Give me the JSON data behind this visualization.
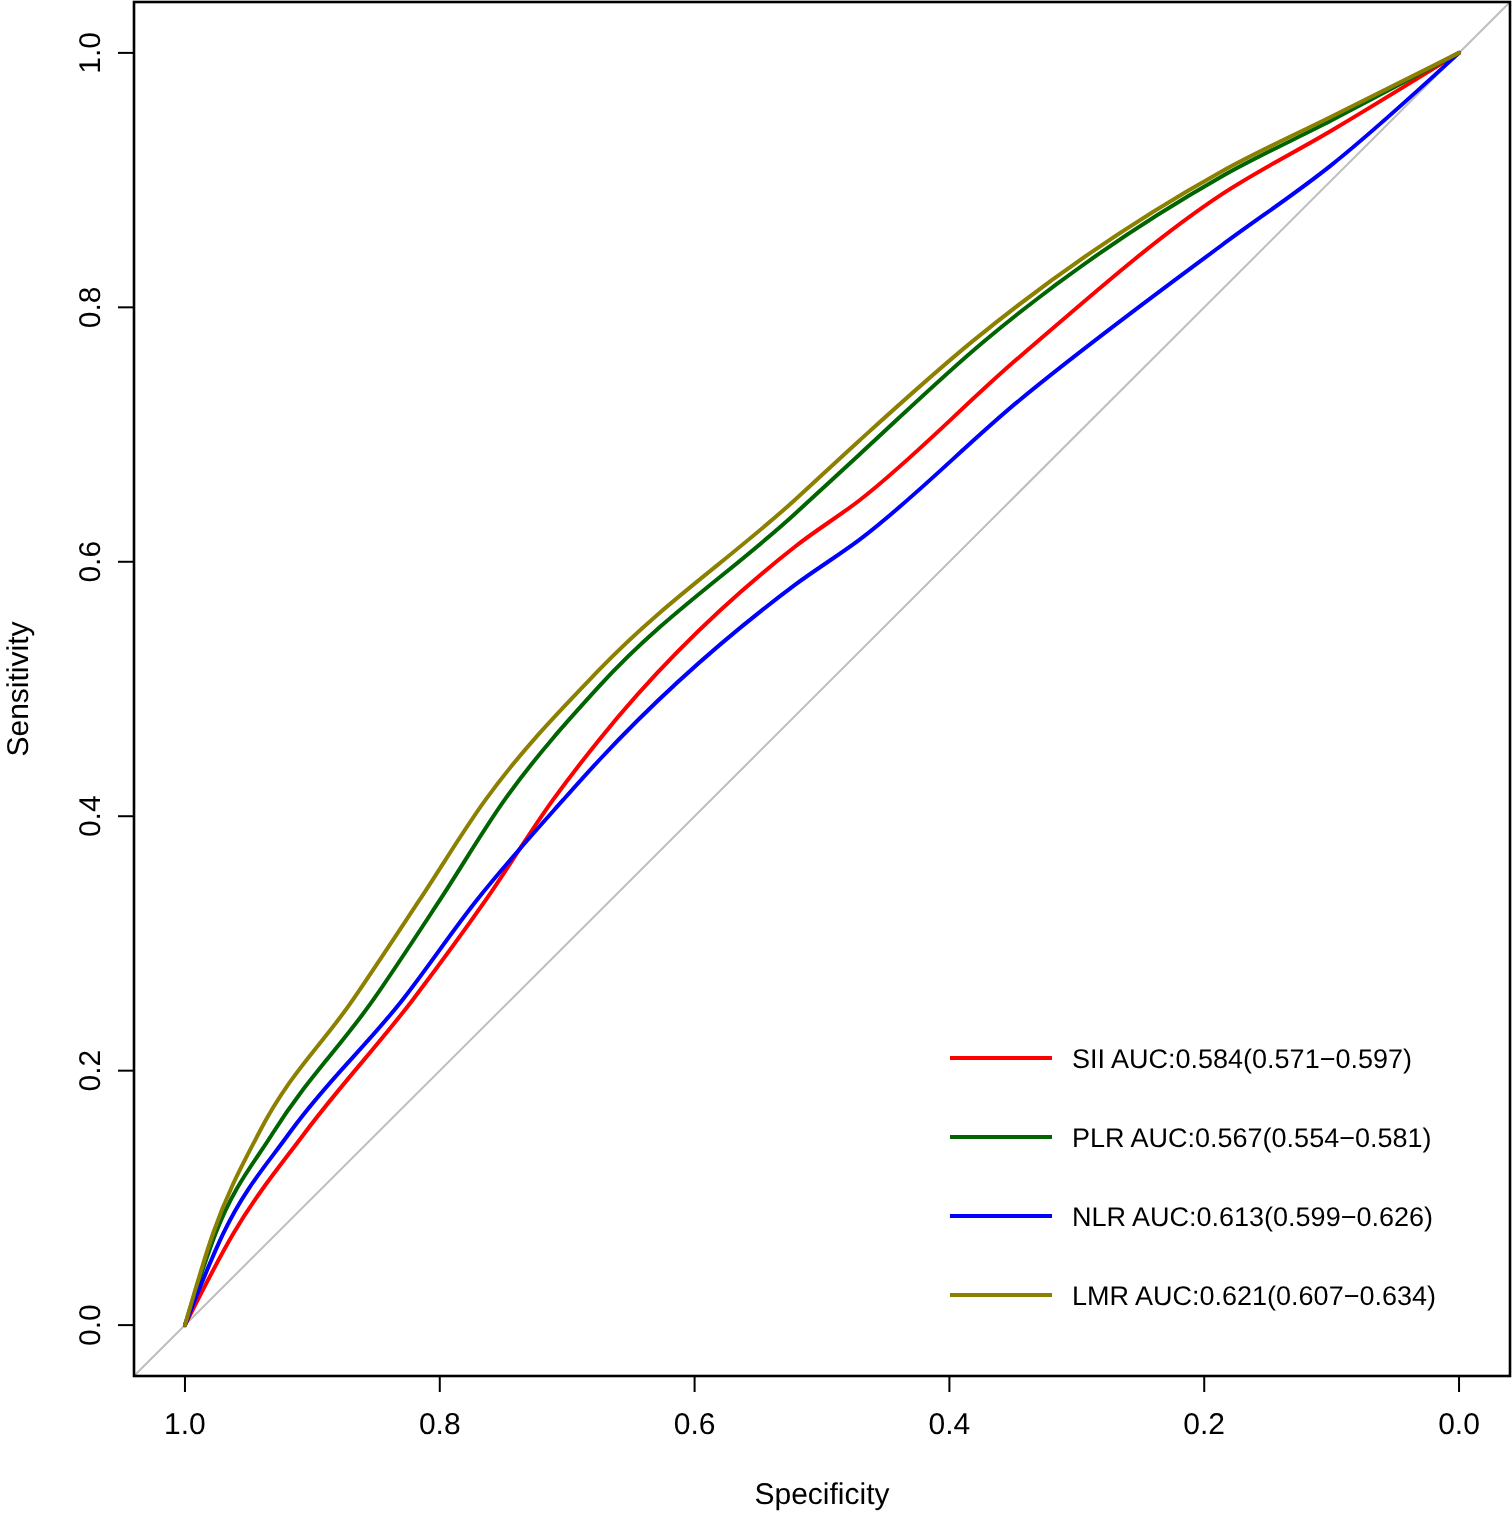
{
  "chart_data": {
    "type": "line",
    "xlabel": "Specificity",
    "ylabel": "Sensitivity",
    "xlim": [
      1.04,
      -0.04
    ],
    "ylim": [
      -0.04,
      1.04
    ],
    "xticks": [
      {
        "value": 1,
        "label": "1.0"
      },
      0.8,
      0.6,
      0.4,
      0.2,
      {
        "value": 0,
        "label": "0.0"
      }
    ],
    "yticks": [
      {
        "value": 0,
        "label": "0.0"
      },
      0.2,
      0.4,
      0.6,
      0.8,
      {
        "value": 1,
        "label": "1.0"
      }
    ],
    "grid": false,
    "legend": "bottom right",
    "marker": "none",
    "line_style": "solid",
    "series": [
      {
        "color": "#bebebe",
        "x": [
          1.04,
          -0.04
        ],
        "values": [
          -0.04,
          1.04
        ]
      },
      {
        "name": "SII AUC:0.584(0.571−0.597)",
        "color": "#ff0000",
        "x": [
          1,
          0.962,
          0.906,
          0.821,
          0.764,
          0.711,
          0.675,
          0.521,
          0.471,
          0.345,
          0.186,
          0.1,
          0
        ],
        "values": [
          0,
          0.072,
          0.151,
          0.256,
          0.334,
          0.413,
          0.46,
          0.612,
          0.648,
          0.761,
          0.889,
          0.939,
          1
        ]
      },
      {
        "name": "PLR AUC:0.567(0.554−0.581)",
        "color": "#006400",
        "x": [
          1,
          0.976,
          0.931,
          0.852,
          0.8,
          0.749,
          0.675,
          0.522,
          0.471,
          0.372,
          0.186,
          0.1,
          0
        ],
        "values": [
          0,
          0.072,
          0.151,
          0.256,
          0.334,
          0.413,
          0.502,
          0.637,
          0.684,
          0.774,
          0.903,
          0.947,
          1
        ]
      },
      {
        "name": "NLR AUC:0.613(0.599−0.626)",
        "color": "#0000ff",
        "x": [
          1,
          0.97,
          0.918,
          0.829,
          0.771,
          0.703,
          0.675,
          0.521,
          0.471,
          0.345,
          0.186,
          0.1,
          0
        ],
        "values": [
          0,
          0.072,
          0.151,
          0.256,
          0.334,
          0.413,
          0.444,
          0.582,
          0.617,
          0.727,
          0.849,
          0.912,
          1
        ]
      },
      {
        "name": "LMR AUC:0.621(0.607−0.634)",
        "color": "#8b8000",
        "x": [
          1,
          0.978,
          0.942,
          0.868,
          0.816,
          0.764,
          0.675,
          0.522,
          0.471,
          0.381,
          0.186,
          0.1,
          0
        ],
        "values": [
          0,
          0.072,
          0.151,
          0.256,
          0.334,
          0.413,
          0.515,
          0.648,
          0.695,
          0.774,
          0.907,
          0.95,
          1
        ]
      }
    ]
  }
}
